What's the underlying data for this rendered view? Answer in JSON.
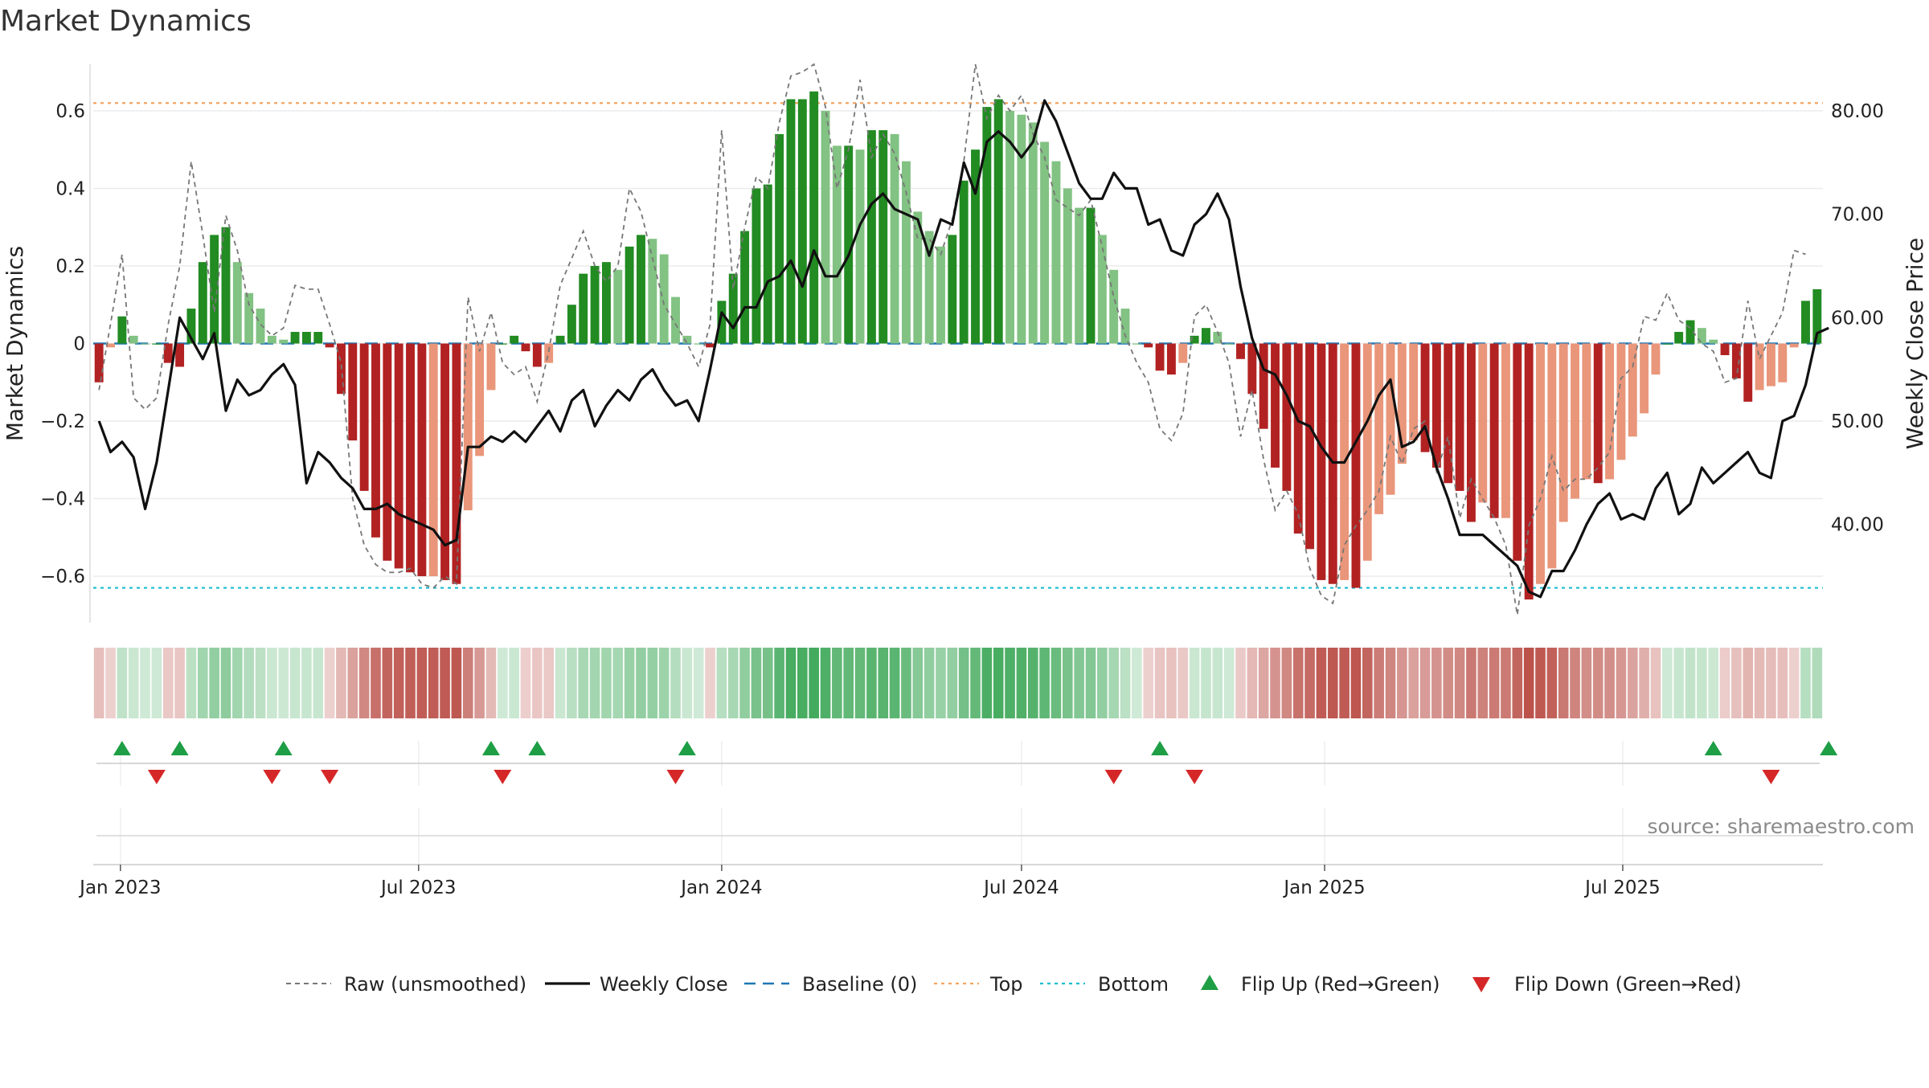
{
  "title": "Market Dynamics",
  "source": "source: sharemaestro.com",
  "colors": {
    "pos_strong": "#228b22",
    "pos_light": "#82c283",
    "neg_strong": "#b22222",
    "neg_light": "#e9967a",
    "close": "#111111",
    "raw": "#777777",
    "baseline": "#1f77b4",
    "top": "#f4a460",
    "bottom": "#17becf",
    "flip_up": "#1e9e45",
    "flip_down": "#d62728"
  },
  "chart_data": {
    "type": "bar",
    "title": "Market Dynamics",
    "ylabel": "Market Dynamics",
    "y2label": "Weekly Close Price",
    "ylim": [
      -0.72,
      0.72
    ],
    "y2lim": [
      30.5,
      84.5
    ],
    "yticks": [
      "−0.6",
      "−0.4",
      "−0.2",
      "0",
      "0.2",
      "0.4",
      "0.6"
    ],
    "y2ticks": [
      "40.00",
      "50.00",
      "60.00",
      "70.00",
      "80.00"
    ],
    "xticks": [
      "Jan 2023",
      "Jul 2023",
      "Jan 2024",
      "Jul 2024",
      "Jan 2025",
      "Jul 2025"
    ],
    "start_date": "2022-12-19",
    "baseline": 0,
    "top": 0.62,
    "bottom": -0.63,
    "grid": true,
    "legend_position": "bottom",
    "bars": [
      -0.1,
      -0.01,
      0.07,
      0.02,
      0.0,
      0.0,
      -0.05,
      -0.06,
      0.09,
      0.21,
      0.28,
      0.3,
      0.21,
      0.13,
      0.09,
      0.02,
      0.01,
      0.03,
      0.03,
      0.03,
      -0.01,
      -0.13,
      -0.25,
      -0.38,
      -0.5,
      -0.56,
      -0.58,
      -0.59,
      -0.6,
      -0.6,
      -0.61,
      -0.62,
      -0.43,
      -0.29,
      -0.12,
      0.0,
      0.02,
      -0.02,
      -0.06,
      -0.05,
      0.02,
      0.1,
      0.18,
      0.2,
      0.21,
      0.19,
      0.25,
      0.28,
      0.27,
      0.23,
      0.12,
      0.02,
      0.0,
      -0.01,
      0.11,
      0.18,
      0.29,
      0.4,
      0.41,
      0.54,
      0.63,
      0.63,
      0.65,
      0.6,
      0.51,
      0.51,
      0.5,
      0.55,
      0.55,
      0.54,
      0.47,
      0.34,
      0.29,
      0.25,
      0.28,
      0.42,
      0.5,
      0.61,
      0.63,
      0.6,
      0.59,
      0.57,
      0.52,
      0.47,
      0.4,
      0.35,
      0.35,
      0.28,
      0.19,
      0.09,
      0.0,
      -0.01,
      -0.07,
      -0.08,
      -0.05,
      0.02,
      0.04,
      0.03,
      0.0,
      -0.04,
      -0.13,
      -0.22,
      -0.32,
      -0.38,
      -0.49,
      -0.53,
      -0.61,
      -0.62,
      -0.61,
      -0.63,
      -0.56,
      -0.44,
      -0.39,
      -0.31,
      -0.25,
      -0.28,
      -0.32,
      -0.36,
      -0.38,
      -0.46,
      -0.41,
      -0.45,
      -0.45,
      -0.56,
      -0.66,
      -0.62,
      -0.58,
      -0.46,
      -0.4,
      -0.35,
      -0.36,
      -0.35,
      -0.3,
      -0.24,
      -0.18,
      -0.08,
      0.0,
      0.03,
      0.06,
      0.04,
      0.01,
      -0.03,
      -0.09,
      -0.15,
      -0.12,
      -0.11,
      -0.1,
      -0.01,
      0.11,
      0.14
    ],
    "series": [
      {
        "name": "Raw (unsmoothed)",
        "values": [
          -0.12,
          0.05,
          0.23,
          -0.14,
          -0.17,
          -0.14,
          0.05,
          0.2,
          0.47,
          0.28,
          0.08,
          0.33,
          0.24,
          0.1,
          0.05,
          0.02,
          0.04,
          0.15,
          0.14,
          0.14,
          0.05,
          -0.05,
          -0.4,
          -0.52,
          -0.57,
          -0.59,
          -0.59,
          -0.58,
          -0.62,
          -0.63,
          -0.6,
          -0.62,
          0.12,
          -0.02,
          0.08,
          -0.05,
          -0.08,
          -0.06,
          -0.15,
          -0.02,
          0.15,
          0.22,
          0.29,
          0.2,
          0.16,
          0.2,
          0.4,
          0.34,
          0.22,
          0.1,
          0.05,
          0.0,
          -0.06,
          0.05,
          0.55,
          0.14,
          0.3,
          0.43,
          0.4,
          0.57,
          0.69,
          0.7,
          0.72,
          0.61,
          0.4,
          0.5,
          0.68,
          0.48,
          0.54,
          0.49,
          0.39,
          0.27,
          0.27,
          0.23,
          0.32,
          0.47,
          0.72,
          0.58,
          0.64,
          0.6,
          0.64,
          0.54,
          0.48,
          0.37,
          0.35,
          0.33,
          0.37,
          0.25,
          0.12,
          0.02,
          -0.05,
          -0.1,
          -0.22,
          -0.25,
          -0.18,
          0.07,
          0.1,
          0.03,
          -0.05,
          -0.24,
          -0.12,
          -0.3,
          -0.43,
          -0.38,
          -0.44,
          -0.58,
          -0.65,
          -0.67,
          -0.52,
          -0.47,
          -0.43,
          -0.38,
          -0.24,
          -0.31,
          -0.22,
          -0.2,
          -0.33,
          -0.24,
          -0.45,
          -0.35,
          -0.4,
          -0.45,
          -0.52,
          -0.7,
          -0.47,
          -0.4,
          -0.29,
          -0.38,
          -0.35,
          -0.35,
          -0.32,
          -0.28,
          -0.09,
          -0.06,
          0.07,
          0.06,
          0.13,
          0.06,
          0.04,
          0.0,
          -0.02,
          -0.1,
          -0.09,
          0.11,
          -0.04,
          0.02,
          0.08,
          0.24,
          0.23
        ]
      },
      {
        "name": "Weekly Close",
        "values": [
          50.0,
          47.0,
          48.0,
          46.5,
          41.5,
          46.0,
          53.0,
          60.0,
          58.0,
          56.0,
          58.5,
          51.0,
          54.0,
          52.5,
          53.0,
          54.5,
          55.5,
          53.5,
          44.0,
          47.0,
          46.0,
          44.5,
          43.5,
          41.5,
          41.5,
          42.0,
          41.0,
          40.5,
          40.0,
          39.5,
          38.0,
          38.5,
          47.5,
          47.5,
          48.5,
          48.0,
          49.0,
          48.0,
          49.5,
          51.0,
          49.0,
          52.0,
          53.0,
          49.5,
          51.5,
          53.0,
          52.0,
          54.0,
          55.0,
          53.0,
          51.5,
          52.0,
          50.0,
          55.0,
          60.5,
          59.0,
          61.0,
          61.0,
          63.5,
          64.0,
          65.5,
          63.0,
          66.5,
          64.0,
          64.0,
          66.0,
          69.0,
          71.0,
          72.0,
          70.5,
          70.0,
          69.5,
          66.0,
          69.5,
          69.0,
          75.0,
          72.0,
          77.0,
          78.0,
          77.0,
          75.5,
          77.0,
          81.0,
          79.0,
          76.0,
          73.0,
          71.5,
          71.5,
          74.0,
          72.5,
          72.5,
          69.0,
          69.5,
          66.5,
          66.0,
          69.0,
          70.0,
          72.0,
          69.5,
          63.0,
          58.0,
          55.0,
          54.5,
          52.5,
          50.0,
          49.5,
          47.5,
          46.0,
          46.0,
          48.0,
          50.0,
          52.5,
          54.0,
          47.5,
          48.0,
          49.5,
          45.5,
          42.5,
          39.0,
          39.0,
          39.0,
          38.0,
          37.0,
          36.0,
          33.5,
          33.0,
          35.5,
          35.5,
          37.5,
          40.0,
          42.0,
          43.0,
          40.5,
          41.0,
          40.5,
          43.5,
          45.0,
          41.0,
          42.0,
          45.5,
          44.0,
          45.0,
          46.0,
          47.0,
          45.0,
          44.5,
          50.0,
          50.5,
          53.5,
          58.5,
          59.0
        ]
      }
    ],
    "hlines": [
      {
        "name": "Baseline (0)",
        "value": 0
      },
      {
        "name": "Top",
        "value": 0.62
      },
      {
        "name": "Bottom",
        "value": -0.63
      }
    ],
    "flip_up_weeks": [
      2,
      7,
      16,
      34,
      38,
      51,
      92,
      140,
      150
    ],
    "flip_down_weeks": [
      5,
      15,
      20,
      35,
      50,
      88,
      95,
      145
    ],
    "flip_up_name": "Flip Up (Red→Green)",
    "flip_down_name": "Flip Down (Green→Red)"
  }
}
